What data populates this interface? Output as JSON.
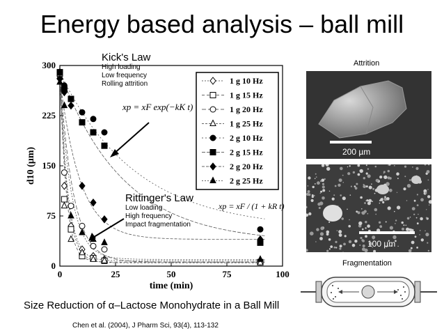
{
  "slide": {
    "title": "Energy based analysis – ball mill",
    "caption": "Size Reduction of α–Lactose Monohydrate in a Ball Mill",
    "citation": "Chen et al. (2004), J Pharm Sci, 93(4), 113-132"
  },
  "annotations": {
    "kick": {
      "heading": "Kick's Law",
      "lines": [
        "High loading",
        "Low frequency",
        "Rolling attrition"
      ]
    },
    "rittinger": {
      "heading": "Rittinger's Law",
      "lines": [
        "Low loading",
        "High frequency",
        "Impact fragmentation"
      ]
    }
  },
  "images": {
    "attrition_label": "Attrition",
    "attrition_scale": "200 µm",
    "fragmentation_label": "Fragmentation",
    "fragmentation_scale": "100 µm"
  },
  "chart_data": {
    "type": "scatter",
    "xlabel": "time (min)",
    "ylabel": "d10 (µm)",
    "xlim": [
      0,
      100
    ],
    "ylim": [
      0,
      300
    ],
    "xticks": [
      0,
      25,
      50,
      75,
      100
    ],
    "yticks": [
      0,
      75,
      150,
      225,
      300
    ],
    "legend_position": "top-right",
    "equations": {
      "kick": "xp = xF exp(−kK t)",
      "rittinger": "xp = xF / (1 + kR t)"
    },
    "series": [
      {
        "name": "1 g 10 Hz",
        "marker": "diamond-open",
        "x": [
          0,
          2,
          5,
          10,
          15,
          20,
          90
        ],
        "y": [
          290,
          120,
          60,
          25,
          15,
          10,
          8
        ]
      },
      {
        "name": "1 g 15 Hz",
        "marker": "square-open",
        "x": [
          0,
          2,
          5,
          10,
          15,
          20,
          90
        ],
        "y": [
          288,
          100,
          55,
          15,
          12,
          8,
          6
        ]
      },
      {
        "name": "1 g 20 Hz",
        "marker": "circle-open",
        "x": [
          0,
          2,
          5,
          10,
          15,
          20,
          90
        ],
        "y": [
          286,
          140,
          90,
          60,
          30,
          25,
          6
        ]
      },
      {
        "name": "1 g 25 Hz",
        "marker": "triangle-open",
        "x": [
          0,
          2,
          5,
          10,
          15,
          20,
          90
        ],
        "y": [
          284,
          90,
          40,
          20,
          10,
          8,
          5
        ]
      },
      {
        "name": "2 g 10 Hz",
        "marker": "circle",
        "x": [
          0,
          2,
          5,
          10,
          15,
          20,
          90
        ],
        "y": [
          290,
          270,
          250,
          230,
          220,
          200,
          55
        ]
      },
      {
        "name": "2 g 15 Hz",
        "marker": "square",
        "x": [
          0,
          2,
          5,
          10,
          15,
          20,
          90
        ],
        "y": [
          290,
          265,
          250,
          215,
          200,
          180,
          35
        ]
      },
      {
        "name": "2 g 20 Hz",
        "marker": "diamond",
        "x": [
          0,
          2,
          5,
          10,
          15,
          20,
          90
        ],
        "y": [
          280,
          260,
          240,
          120,
          95,
          70,
          40
        ]
      },
      {
        "name": "2 g 25 Hz",
        "marker": "triangle",
        "x": [
          0,
          2,
          5,
          10,
          15,
          20,
          90
        ],
        "y": [
          275,
          240,
          75,
          50,
          40,
          35,
          10
        ]
      }
    ]
  }
}
